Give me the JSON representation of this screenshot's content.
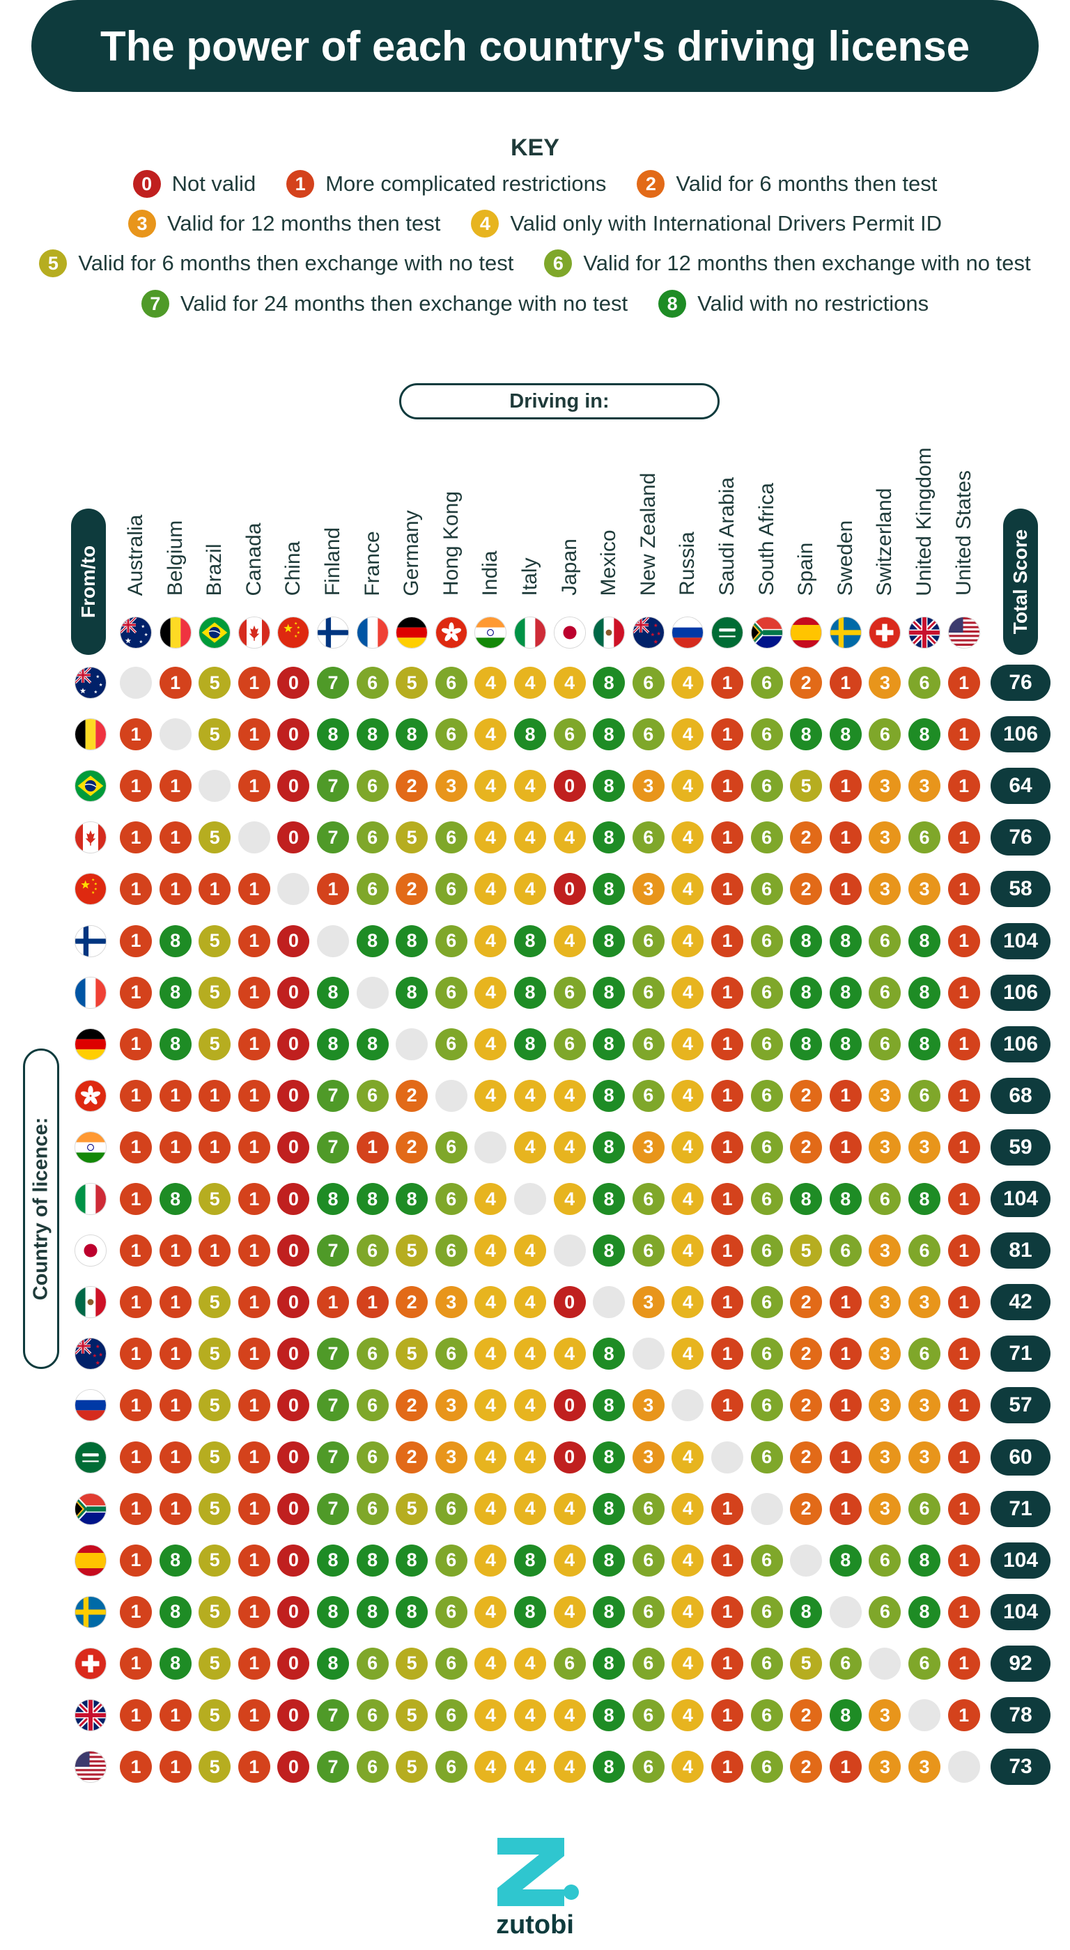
{
  "title": "The power of each country's driving license",
  "key": {
    "title": "KEY",
    "rows": [
      [
        0,
        1,
        2
      ],
      [
        3,
        4
      ],
      [
        5,
        6
      ],
      [
        7,
        8
      ]
    ],
    "items": [
      {
        "code": "0",
        "label": "Not valid",
        "color": "#c0201f"
      },
      {
        "code": "1",
        "label": "More complicated restrictions",
        "color": "#d4421c"
      },
      {
        "code": "2",
        "label": "Valid for 6 months then test",
        "color": "#e26a18"
      },
      {
        "code": "3",
        "label": "Valid for 12 months then test",
        "color": "#e8951b"
      },
      {
        "code": "4",
        "label": "Valid only with International Drivers Permit ID",
        "color": "#e7b41f"
      },
      {
        "code": "5",
        "label": "Valid for 6 months then exchange with no test",
        "color": "#b6ad20"
      },
      {
        "code": "6",
        "label": "Valid for 12 months then exchange with no test",
        "color": "#7fa72a"
      },
      {
        "code": "7",
        "label": "Valid for 24 months then exchange with no test",
        "color": "#4f9a28"
      },
      {
        "code": "8",
        "label": "Valid with no restrictions",
        "color": "#1e8c25"
      }
    ]
  },
  "driving_in_label": "Driving in:",
  "from_to_label": "From/to",
  "total_score_label": "Total Score",
  "country_of_licence_label": "Country of licence:",
  "colors": {
    "dark": "#0e3b3d",
    "empty": "#e6e6e6"
  },
  "chart_data": {
    "type": "table",
    "columns": [
      "Australia",
      "Belgium",
      "Brazil",
      "Canada",
      "China",
      "Finland",
      "France",
      "Germany",
      "Hong Kong",
      "India",
      "Italy",
      "Japan",
      "Mexico",
      "New Zealand",
      "Russia",
      "Saudi Arabia",
      "South Africa",
      "Spain",
      "Sweden",
      "Switzerland",
      "United Kingdom",
      "United States"
    ],
    "rows": [
      {
        "flag": "australia",
        "values": [
          null,
          1,
          5,
          1,
          0,
          7,
          6,
          5,
          6,
          4,
          4,
          4,
          8,
          6,
          4,
          1,
          6,
          2,
          1,
          3,
          6,
          1
        ],
        "total": 76
      },
      {
        "flag": "belgium",
        "values": [
          1,
          null,
          5,
          1,
          0,
          8,
          8,
          8,
          6,
          4,
          8,
          6,
          8,
          6,
          4,
          1,
          6,
          8,
          8,
          6,
          8,
          1
        ],
        "total": 106
      },
      {
        "flag": "brazil",
        "values": [
          1,
          1,
          null,
          1,
          0,
          7,
          6,
          2,
          3,
          4,
          4,
          0,
          8,
          3,
          4,
          1,
          6,
          5,
          1,
          3,
          3,
          1
        ],
        "total": 64
      },
      {
        "flag": "canada",
        "values": [
          1,
          1,
          5,
          null,
          0,
          7,
          6,
          5,
          6,
          4,
          4,
          4,
          8,
          6,
          4,
          1,
          6,
          2,
          1,
          3,
          6,
          1
        ],
        "total": 76
      },
      {
        "flag": "china",
        "values": [
          1,
          1,
          1,
          1,
          null,
          1,
          6,
          2,
          6,
          4,
          4,
          0,
          8,
          3,
          4,
          1,
          6,
          2,
          1,
          3,
          3,
          1
        ],
        "total": 58
      },
      {
        "flag": "finland",
        "values": [
          1,
          8,
          5,
          1,
          0,
          null,
          8,
          8,
          6,
          4,
          8,
          4,
          8,
          6,
          4,
          1,
          6,
          8,
          8,
          6,
          8,
          1
        ],
        "total": 104
      },
      {
        "flag": "france",
        "values": [
          1,
          8,
          5,
          1,
          0,
          8,
          null,
          8,
          6,
          4,
          8,
          6,
          8,
          6,
          4,
          1,
          6,
          8,
          8,
          6,
          8,
          1
        ],
        "total": 106
      },
      {
        "flag": "germany",
        "values": [
          1,
          8,
          5,
          1,
          0,
          8,
          8,
          null,
          6,
          4,
          8,
          6,
          8,
          6,
          4,
          1,
          6,
          8,
          8,
          6,
          8,
          1
        ],
        "total": 106
      },
      {
        "flag": "hongkong",
        "values": [
          1,
          1,
          1,
          1,
          0,
          7,
          6,
          2,
          null,
          4,
          4,
          4,
          8,
          6,
          4,
          1,
          6,
          2,
          1,
          3,
          6,
          1
        ],
        "total": 68
      },
      {
        "flag": "india",
        "values": [
          1,
          1,
          1,
          1,
          0,
          7,
          1,
          2,
          6,
          null,
          4,
          4,
          8,
          3,
          4,
          1,
          6,
          2,
          1,
          3,
          3,
          1
        ],
        "total": 59
      },
      {
        "flag": "italy",
        "values": [
          1,
          8,
          5,
          1,
          0,
          8,
          8,
          8,
          6,
          4,
          null,
          4,
          8,
          6,
          4,
          1,
          6,
          8,
          8,
          6,
          8,
          1
        ],
        "total": 104
      },
      {
        "flag": "japan",
        "values": [
          1,
          1,
          1,
          1,
          0,
          7,
          6,
          5,
          6,
          4,
          4,
          null,
          8,
          6,
          4,
          1,
          6,
          5,
          6,
          3,
          6,
          1
        ],
        "total": 81
      },
      {
        "flag": "mexico",
        "values": [
          1,
          1,
          5,
          1,
          0,
          1,
          1,
          2,
          3,
          4,
          4,
          0,
          null,
          3,
          4,
          1,
          6,
          2,
          1,
          3,
          3,
          1
        ],
        "total": 42
      },
      {
        "flag": "newzealand",
        "values": [
          1,
          1,
          5,
          1,
          0,
          7,
          6,
          5,
          6,
          4,
          4,
          4,
          8,
          null,
          4,
          1,
          6,
          2,
          1,
          3,
          6,
          1
        ],
        "total": 71
      },
      {
        "flag": "russia",
        "values": [
          1,
          1,
          5,
          1,
          0,
          7,
          6,
          2,
          3,
          4,
          4,
          0,
          8,
          3,
          null,
          1,
          6,
          2,
          1,
          3,
          3,
          1
        ],
        "total": 57
      },
      {
        "flag": "saudiarabia",
        "values": [
          1,
          1,
          5,
          1,
          0,
          7,
          6,
          2,
          3,
          4,
          4,
          0,
          8,
          3,
          4,
          null,
          6,
          2,
          1,
          3,
          3,
          1
        ],
        "total": 60
      },
      {
        "flag": "southafrica",
        "values": [
          1,
          1,
          5,
          1,
          0,
          7,
          6,
          5,
          6,
          4,
          4,
          4,
          8,
          6,
          4,
          1,
          null,
          2,
          1,
          3,
          6,
          1
        ],
        "total": 71
      },
      {
        "flag": "spain",
        "values": [
          1,
          8,
          5,
          1,
          0,
          8,
          8,
          8,
          6,
          4,
          8,
          4,
          8,
          6,
          4,
          1,
          6,
          null,
          8,
          6,
          8,
          1
        ],
        "total": 104
      },
      {
        "flag": "sweden",
        "values": [
          1,
          8,
          5,
          1,
          0,
          8,
          8,
          8,
          6,
          4,
          8,
          4,
          8,
          6,
          4,
          1,
          6,
          8,
          null,
          6,
          8,
          1
        ],
        "total": 104
      },
      {
        "flag": "switzerland",
        "values": [
          1,
          8,
          5,
          1,
          0,
          8,
          6,
          5,
          6,
          4,
          4,
          6,
          8,
          6,
          4,
          1,
          6,
          5,
          6,
          null,
          6,
          1
        ],
        "total": 92
      },
      {
        "flag": "uk",
        "values": [
          1,
          1,
          5,
          1,
          0,
          7,
          6,
          5,
          6,
          4,
          4,
          4,
          8,
          6,
          4,
          1,
          6,
          2,
          8,
          3,
          null,
          1
        ],
        "total": 78
      },
      {
        "flag": "usa",
        "values": [
          1,
          1,
          5,
          1,
          0,
          7,
          6,
          5,
          6,
          4,
          4,
          4,
          8,
          6,
          4,
          1,
          6,
          2,
          1,
          3,
          3,
          null
        ],
        "total": 73
      }
    ]
  },
  "logo": {
    "word": "zutobi"
  }
}
